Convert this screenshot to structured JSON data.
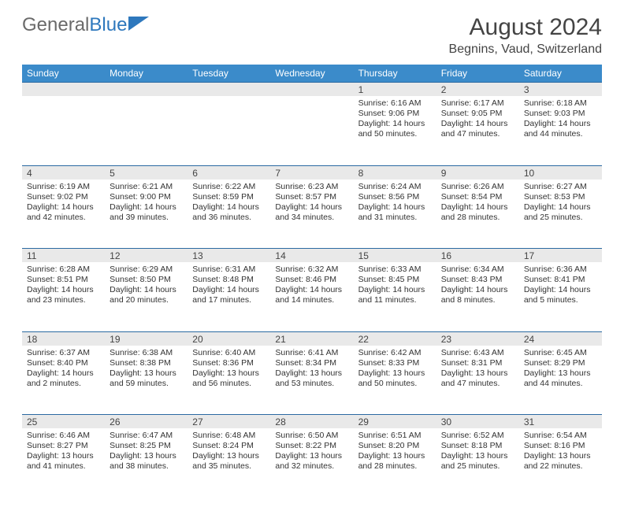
{
  "brand": {
    "part1": "General",
    "part2": "Blue"
  },
  "title": "August 2024",
  "location": "Begnins, Vaud, Switzerland",
  "colors": {
    "header_bg": "#3b8bca",
    "header_text": "#ffffff",
    "daynum_bg": "#e9e9e9",
    "rule": "#2b6aa2",
    "body_text": "#333333",
    "brand_gray": "#6a6a6a",
    "brand_blue": "#2e78bd"
  },
  "weekdays": [
    "Sunday",
    "Monday",
    "Tuesday",
    "Wednesday",
    "Thursday",
    "Friday",
    "Saturday"
  ],
  "weeks": [
    [
      null,
      null,
      null,
      null,
      {
        "n": "1",
        "sr": "6:16 AM",
        "ss": "9:06 PM",
        "dl": "14 hours and 50 minutes."
      },
      {
        "n": "2",
        "sr": "6:17 AM",
        "ss": "9:05 PM",
        "dl": "14 hours and 47 minutes."
      },
      {
        "n": "3",
        "sr": "6:18 AM",
        "ss": "9:03 PM",
        "dl": "14 hours and 44 minutes."
      }
    ],
    [
      {
        "n": "4",
        "sr": "6:19 AM",
        "ss": "9:02 PM",
        "dl": "14 hours and 42 minutes."
      },
      {
        "n": "5",
        "sr": "6:21 AM",
        "ss": "9:00 PM",
        "dl": "14 hours and 39 minutes."
      },
      {
        "n": "6",
        "sr": "6:22 AM",
        "ss": "8:59 PM",
        "dl": "14 hours and 36 minutes."
      },
      {
        "n": "7",
        "sr": "6:23 AM",
        "ss": "8:57 PM",
        "dl": "14 hours and 34 minutes."
      },
      {
        "n": "8",
        "sr": "6:24 AM",
        "ss": "8:56 PM",
        "dl": "14 hours and 31 minutes."
      },
      {
        "n": "9",
        "sr": "6:26 AM",
        "ss": "8:54 PM",
        "dl": "14 hours and 28 minutes."
      },
      {
        "n": "10",
        "sr": "6:27 AM",
        "ss": "8:53 PM",
        "dl": "14 hours and 25 minutes."
      }
    ],
    [
      {
        "n": "11",
        "sr": "6:28 AM",
        "ss": "8:51 PM",
        "dl": "14 hours and 23 minutes."
      },
      {
        "n": "12",
        "sr": "6:29 AM",
        "ss": "8:50 PM",
        "dl": "14 hours and 20 minutes."
      },
      {
        "n": "13",
        "sr": "6:31 AM",
        "ss": "8:48 PM",
        "dl": "14 hours and 17 minutes."
      },
      {
        "n": "14",
        "sr": "6:32 AM",
        "ss": "8:46 PM",
        "dl": "14 hours and 14 minutes."
      },
      {
        "n": "15",
        "sr": "6:33 AM",
        "ss": "8:45 PM",
        "dl": "14 hours and 11 minutes."
      },
      {
        "n": "16",
        "sr": "6:34 AM",
        "ss": "8:43 PM",
        "dl": "14 hours and 8 minutes."
      },
      {
        "n": "17",
        "sr": "6:36 AM",
        "ss": "8:41 PM",
        "dl": "14 hours and 5 minutes."
      }
    ],
    [
      {
        "n": "18",
        "sr": "6:37 AM",
        "ss": "8:40 PM",
        "dl": "14 hours and 2 minutes."
      },
      {
        "n": "19",
        "sr": "6:38 AM",
        "ss": "8:38 PM",
        "dl": "13 hours and 59 minutes."
      },
      {
        "n": "20",
        "sr": "6:40 AM",
        "ss": "8:36 PM",
        "dl": "13 hours and 56 minutes."
      },
      {
        "n": "21",
        "sr": "6:41 AM",
        "ss": "8:34 PM",
        "dl": "13 hours and 53 minutes."
      },
      {
        "n": "22",
        "sr": "6:42 AM",
        "ss": "8:33 PM",
        "dl": "13 hours and 50 minutes."
      },
      {
        "n": "23",
        "sr": "6:43 AM",
        "ss": "8:31 PM",
        "dl": "13 hours and 47 minutes."
      },
      {
        "n": "24",
        "sr": "6:45 AM",
        "ss": "8:29 PM",
        "dl": "13 hours and 44 minutes."
      }
    ],
    [
      {
        "n": "25",
        "sr": "6:46 AM",
        "ss": "8:27 PM",
        "dl": "13 hours and 41 minutes."
      },
      {
        "n": "26",
        "sr": "6:47 AM",
        "ss": "8:25 PM",
        "dl": "13 hours and 38 minutes."
      },
      {
        "n": "27",
        "sr": "6:48 AM",
        "ss": "8:24 PM",
        "dl": "13 hours and 35 minutes."
      },
      {
        "n": "28",
        "sr": "6:50 AM",
        "ss": "8:22 PM",
        "dl": "13 hours and 32 minutes."
      },
      {
        "n": "29",
        "sr": "6:51 AM",
        "ss": "8:20 PM",
        "dl": "13 hours and 28 minutes."
      },
      {
        "n": "30",
        "sr": "6:52 AM",
        "ss": "8:18 PM",
        "dl": "13 hours and 25 minutes."
      },
      {
        "n": "31",
        "sr": "6:54 AM",
        "ss": "8:16 PM",
        "dl": "13 hours and 22 minutes."
      }
    ]
  ],
  "labels": {
    "sunrise": "Sunrise: ",
    "sunset": "Sunset: ",
    "daylight": "Daylight: "
  }
}
